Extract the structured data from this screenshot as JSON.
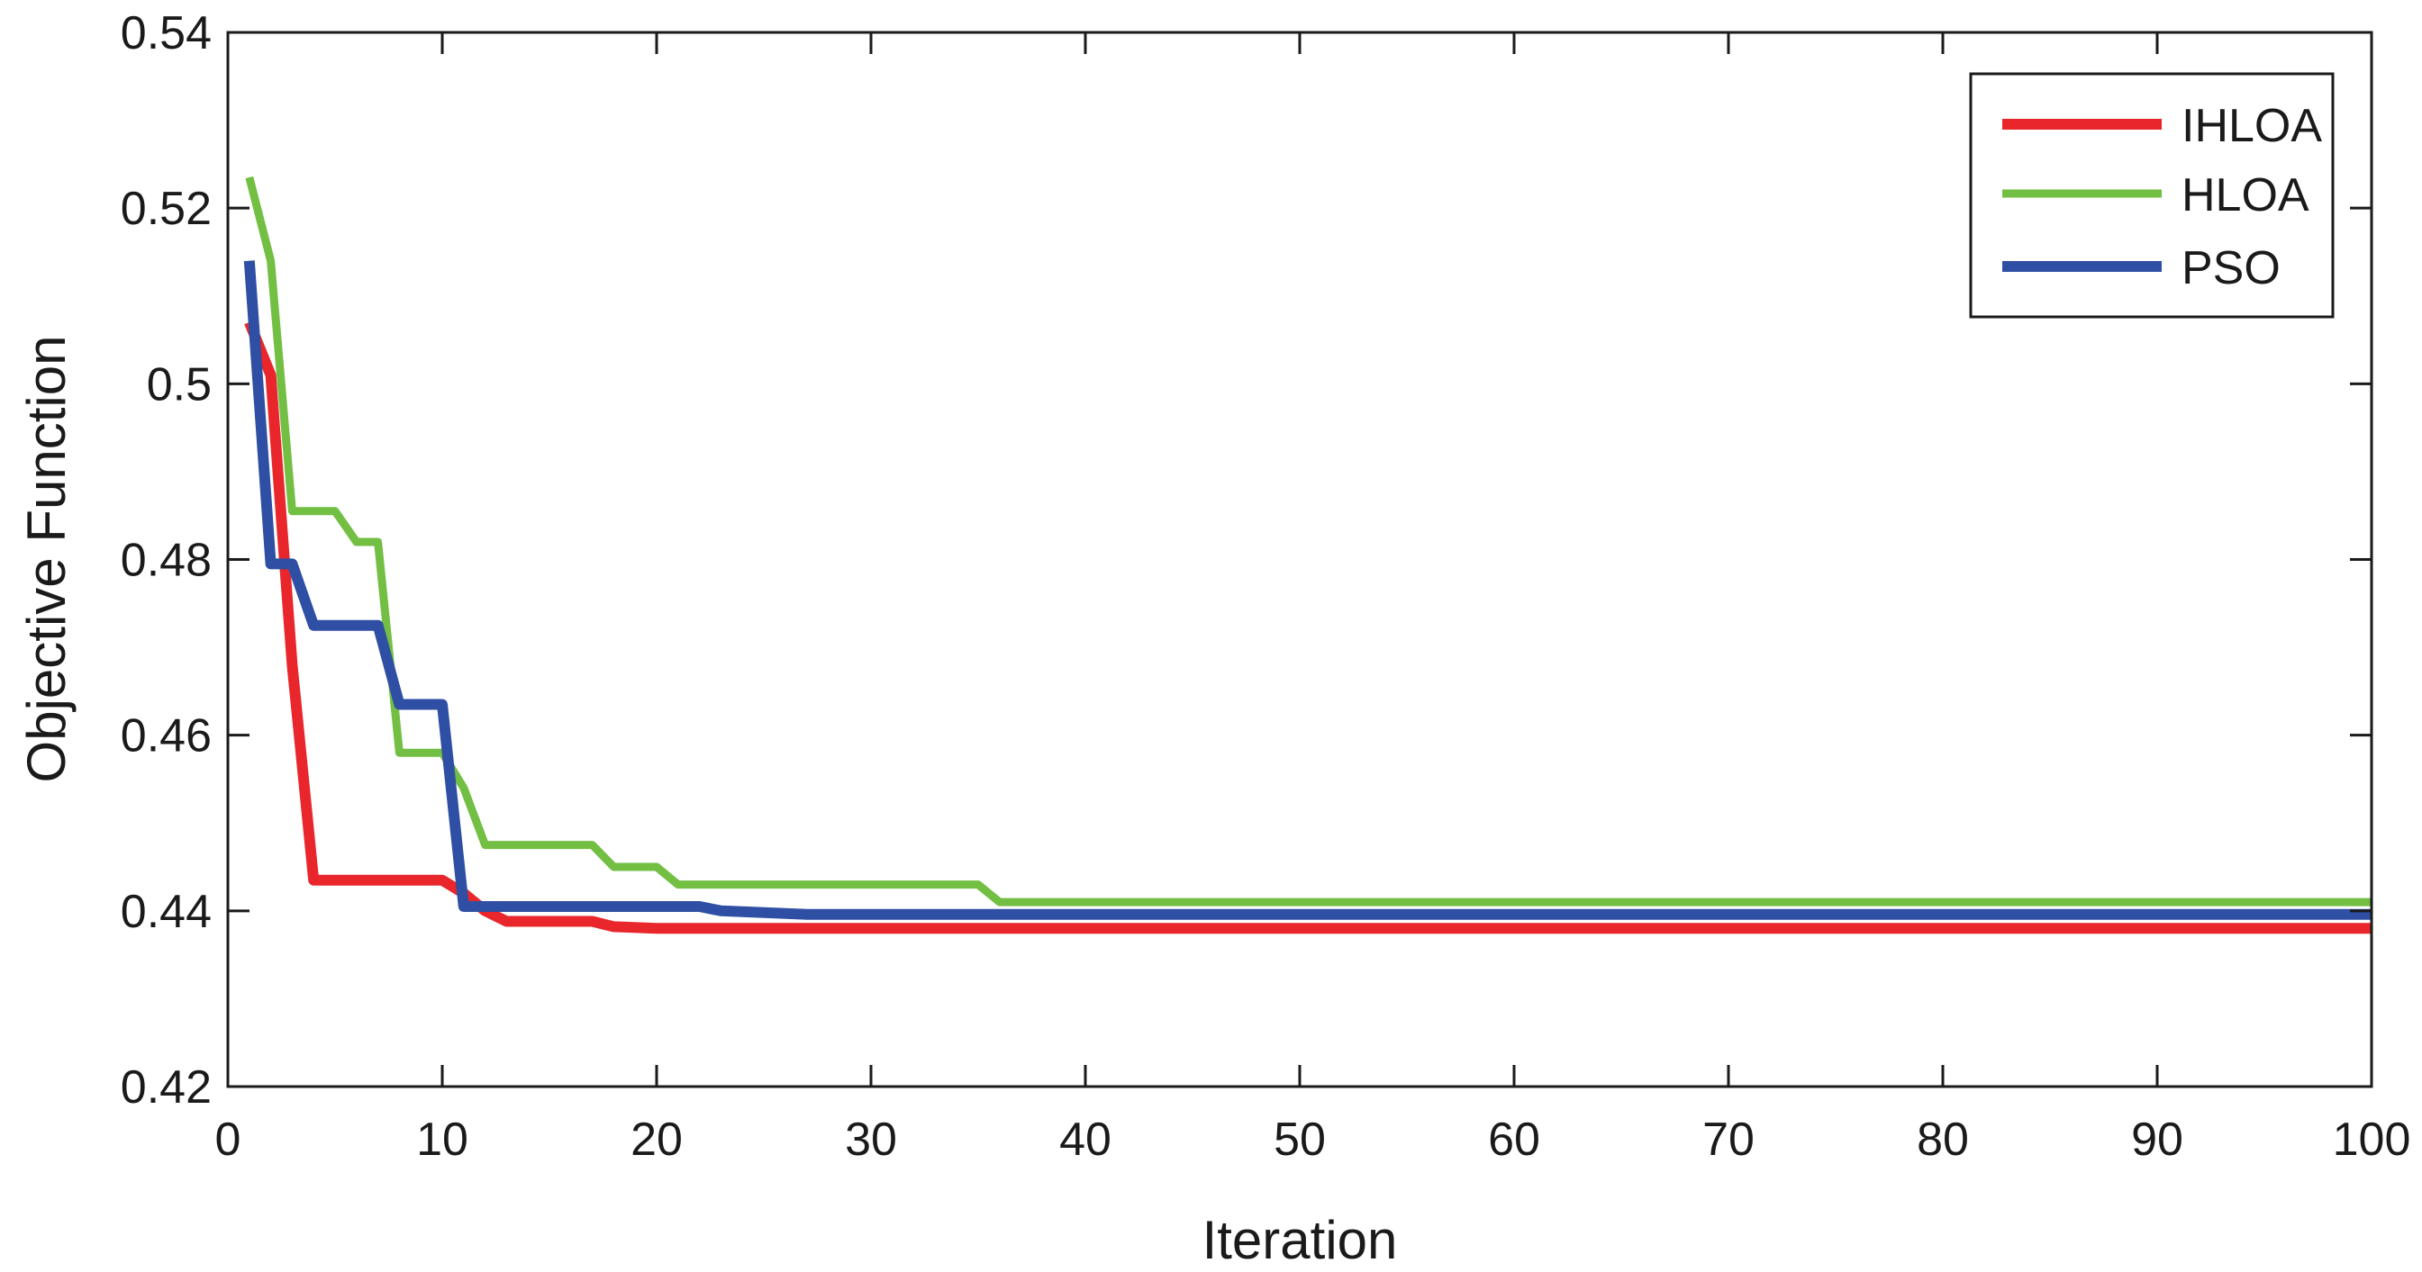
{
  "chart_data": {
    "type": "line",
    "title": "",
    "xlabel": "Iteration",
    "ylabel": "Objective Function",
    "xlim": [
      0,
      100
    ],
    "ylim": [
      0.42,
      0.54
    ],
    "xticks": [
      0,
      10,
      20,
      30,
      40,
      50,
      60,
      70,
      80,
      90,
      100
    ],
    "yticks": [
      0.42,
      0.44,
      0.46,
      0.48,
      0.5,
      0.52,
      0.54
    ],
    "ytick_labels": [
      "0.42",
      "0.44",
      "0.46",
      "0.48",
      "0.5",
      "0.52",
      "0.54"
    ],
    "grid": false,
    "legend_position": "top-right",
    "series": [
      {
        "name": "IHLOA",
        "color": "#e8262b",
        "points": [
          [
            1,
            0.507
          ],
          [
            2,
            0.501
          ],
          [
            3,
            0.468
          ],
          [
            4,
            0.4435
          ],
          [
            5,
            0.4435
          ],
          [
            10,
            0.4435
          ],
          [
            11,
            0.442
          ],
          [
            12,
            0.44
          ],
          [
            13,
            0.4388
          ],
          [
            17,
            0.4388
          ],
          [
            18,
            0.4382
          ],
          [
            20,
            0.438
          ],
          [
            100,
            0.438
          ]
        ]
      },
      {
        "name": "HLOA",
        "color": "#72bf44",
        "points": [
          [
            1,
            0.5235
          ],
          [
            2,
            0.514
          ],
          [
            3,
            0.4855
          ],
          [
            5,
            0.4855
          ],
          [
            6,
            0.482
          ],
          [
            7,
            0.482
          ],
          [
            8,
            0.458
          ],
          [
            10,
            0.458
          ],
          [
            11,
            0.454
          ],
          [
            12,
            0.4475
          ],
          [
            17,
            0.4475
          ],
          [
            18,
            0.445
          ],
          [
            20,
            0.445
          ],
          [
            21,
            0.443
          ],
          [
            35,
            0.443
          ],
          [
            36,
            0.441
          ],
          [
            100,
            0.441
          ]
        ]
      },
      {
        "name": "PSO",
        "color": "#2e4fa3",
        "points": [
          [
            1,
            0.514
          ],
          [
            2,
            0.4795
          ],
          [
            3,
            0.4795
          ],
          [
            4,
            0.4725
          ],
          [
            7,
            0.4725
          ],
          [
            8,
            0.4635
          ],
          [
            10,
            0.4635
          ],
          [
            11,
            0.4405
          ],
          [
            22,
            0.4405
          ],
          [
            23,
            0.44
          ],
          [
            27,
            0.4396
          ],
          [
            100,
            0.4396
          ]
        ]
      }
    ]
  }
}
